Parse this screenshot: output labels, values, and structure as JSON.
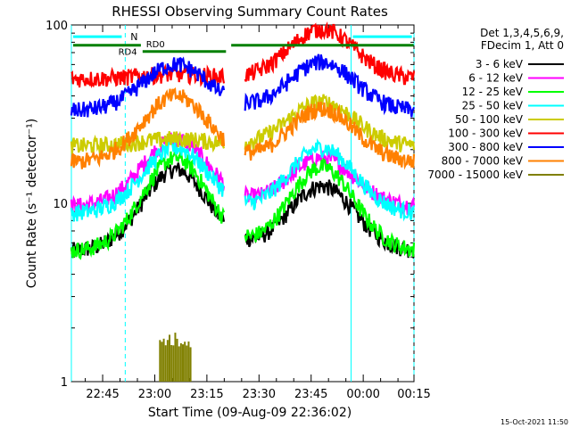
{
  "chart_data": {
    "type": "line",
    "title": "RHESSI Observing Summary Count Rates",
    "xlabel": "Start Time (09-Aug-09 22:36:02)",
    "ylabel": "Count Rate (s⁻¹ detector⁻¹)",
    "yscale": "log",
    "ylim": [
      1,
      100
    ],
    "xlim_minutes": [
      0,
      98.6
    ],
    "xticks": [
      {
        "label": "22:45",
        "minute": 9.0
      },
      {
        "label": "23:00",
        "minute": 24.0
      },
      {
        "label": "23:15",
        "minute": 39.0
      },
      {
        "label": "23:30",
        "minute": 54.0
      },
      {
        "label": "23:45",
        "minute": 69.0
      },
      {
        "label": "00:00",
        "minute": 84.0
      },
      {
        "label": "00:15",
        "minute": 99.0
      }
    ],
    "yticks": [
      {
        "label": "1",
        "value": 1
      },
      {
        "label": "10",
        "value": 10
      },
      {
        "label": "100",
        "value": 100
      }
    ],
    "legend": {
      "header": [
        "Det 1,3,4,5,6,9,",
        "FDecim 1, Att 0"
      ],
      "position": "right"
    },
    "series": [
      {
        "name": "3 - 6 keV",
        "color": "#000000",
        "base": 5.4,
        "peaks": [
          15.5,
          12.5
        ]
      },
      {
        "name": "6 - 12 keV",
        "color": "#ff00ff",
        "base": 9.6,
        "peaks": [
          23.0,
          18.0
        ]
      },
      {
        "name": "12 - 25 keV",
        "color": "#00ff00",
        "base": 5.4,
        "peaks": [
          18.0,
          16.0
        ]
      },
      {
        "name": "25 - 50 keV",
        "color": "#00ffff",
        "base": 8.8,
        "peaks": [
          20.5,
          20.5
        ]
      },
      {
        "name": "50 - 100 keV",
        "color": "#cccc00",
        "base": 21.0,
        "peaks": [
          23.0,
          37.0
        ]
      },
      {
        "name": "100 - 300 keV",
        "color": "#ff0000",
        "base": 50.0,
        "peaks": [
          53.0,
          95.0
        ]
      },
      {
        "name": "300 - 800 keV",
        "color": "#0000ff",
        "base": 33.0,
        "peaks": [
          60.0,
          62.0
        ]
      },
      {
        "name": "800 - 7000 keV",
        "color": "#ff8000",
        "base": 17.0,
        "peaks": [
          40.0,
          34.0
        ]
      },
      {
        "name": "7000 - 15000 keV",
        "color": "#808000",
        "base": 1.0,
        "peaks": [
          1.9,
          1.0
        ]
      }
    ],
    "peak_times_minutes": [
      30.0,
      72.0
    ],
    "dip_window_minutes": [
      44.0,
      50.0
    ],
    "annotations": [
      {
        "text": "N",
        "type": "night"
      },
      {
        "text": "RD4",
        "type": "rate_decimation"
      },
      {
        "text": "RD0",
        "type": "rate_decimation"
      }
    ],
    "orbit_markers_minutes": [
      0,
      15.5,
      80.5,
      98.6
    ],
    "footer": "15-Oct-2021 11:50"
  }
}
